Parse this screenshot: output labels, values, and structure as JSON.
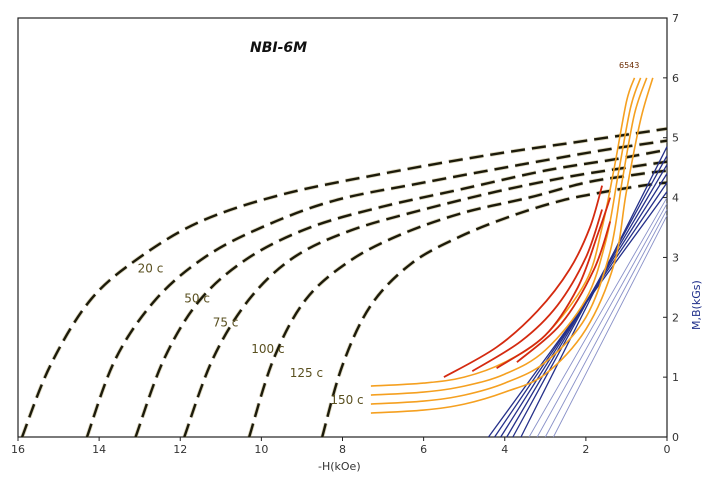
{
  "chart_data": {
    "type": "line",
    "title": "NBI-6M",
    "xlabel": "-H(kOe)",
    "ylabel": "M,B(kGs)",
    "x_reversed": true,
    "xlim": [
      16,
      0
    ],
    "ylim": [
      0,
      7
    ],
    "x_ticks": [
      "16",
      "14",
      "12",
      "10",
      "8",
      "6",
      "4",
      "2",
      "0"
    ],
    "y_ticks": [
      "0",
      "1",
      "2",
      "3",
      "4",
      "5",
      "6",
      "7"
    ],
    "grid": false,
    "colors": {
      "demag_dash": "#1c1a0a",
      "demag_tint": "#9a8a40",
      "orange": "#f5a020",
      "red": "#d42a10",
      "blue": "#25308a",
      "light_blue": "#8890c8",
      "axis": "#222222"
    },
    "annotation": "6543",
    "temperature_labels": [
      "20 c",
      "50 c",
      "75 c",
      "100 c",
      "125 c",
      "150 c"
    ],
    "intrinsic_curves": [
      {
        "name": "20 c",
        "hcj": 15.9,
        "mr": 5.15,
        "points": [
          [
            15.9,
            0
          ],
          [
            15.2,
            1.2
          ],
          [
            14.2,
            2.3
          ],
          [
            13.0,
            3.0
          ],
          [
            11.5,
            3.6
          ],
          [
            9.5,
            4.05
          ],
          [
            7.0,
            4.4
          ],
          [
            4.5,
            4.7
          ],
          [
            2.0,
            4.95
          ],
          [
            0,
            5.15
          ]
        ]
      },
      {
        "name": "50 c",
        "hcj": 14.3,
        "mr": 4.95,
        "points": [
          [
            14.3,
            0
          ],
          [
            13.6,
            1.3
          ],
          [
            12.6,
            2.3
          ],
          [
            11.4,
            3.0
          ],
          [
            10.0,
            3.5
          ],
          [
            8.2,
            3.95
          ],
          [
            6.0,
            4.25
          ],
          [
            3.6,
            4.55
          ],
          [
            1.5,
            4.8
          ],
          [
            0,
            4.95
          ]
        ]
      },
      {
        "name": "75 c",
        "hcj": 13.1,
        "mr": 4.8,
        "points": [
          [
            13.1,
            0
          ],
          [
            12.4,
            1.3
          ],
          [
            11.5,
            2.3
          ],
          [
            10.3,
            3.0
          ],
          [
            8.8,
            3.5
          ],
          [
            7.0,
            3.85
          ],
          [
            5.0,
            4.15
          ],
          [
            3.0,
            4.45
          ],
          [
            1.2,
            4.65
          ],
          [
            0,
            4.8
          ]
        ]
      },
      {
        "name": "100 c",
        "hcj": 11.9,
        "mr": 4.6,
        "points": [
          [
            11.9,
            0
          ],
          [
            11.2,
            1.3
          ],
          [
            10.3,
            2.3
          ],
          [
            9.2,
            3.0
          ],
          [
            7.8,
            3.45
          ],
          [
            6.0,
            3.8
          ],
          [
            4.2,
            4.1
          ],
          [
            2.4,
            4.35
          ],
          [
            1.0,
            4.5
          ],
          [
            0,
            4.6
          ]
        ]
      },
      {
        "name": "125 c",
        "hcj": 10.3,
        "mr": 4.45,
        "points": [
          [
            10.3,
            0
          ],
          [
            9.7,
            1.3
          ],
          [
            8.9,
            2.3
          ],
          [
            7.8,
            2.95
          ],
          [
            6.5,
            3.4
          ],
          [
            5.0,
            3.75
          ],
          [
            3.4,
            4.0
          ],
          [
            2.0,
            4.25
          ],
          [
            0.8,
            4.38
          ],
          [
            0,
            4.45
          ]
        ]
      },
      {
        "name": "150 c",
        "hcj": 8.5,
        "mr": 4.25,
        "points": [
          [
            8.5,
            0
          ],
          [
            8.0,
            1.2
          ],
          [
            7.3,
            2.2
          ],
          [
            6.3,
            2.9
          ],
          [
            5.1,
            3.35
          ],
          [
            3.8,
            3.7
          ],
          [
            2.6,
            3.95
          ],
          [
            1.5,
            4.1
          ],
          [
            0.6,
            4.2
          ],
          [
            0,
            4.25
          ]
        ]
      }
    ],
    "normal_curves_orange": [
      {
        "points": [
          [
            7.3,
            0.85
          ],
          [
            6.0,
            0.9
          ],
          [
            5.0,
            1.0
          ],
          [
            4.0,
            1.25
          ],
          [
            3.0,
            1.7
          ],
          [
            2.0,
            2.6
          ],
          [
            1.6,
            3.5
          ],
          [
            1.3,
            4.5
          ],
          [
            1.0,
            5.6
          ],
          [
            0.8,
            6.0
          ]
        ]
      },
      {
        "points": [
          [
            7.3,
            0.7
          ],
          [
            6.0,
            0.75
          ],
          [
            5.0,
            0.85
          ],
          [
            4.0,
            1.05
          ],
          [
            3.0,
            1.45
          ],
          [
            2.0,
            2.3
          ],
          [
            1.5,
            3.3
          ],
          [
            1.2,
            4.4
          ],
          [
            0.9,
            5.5
          ],
          [
            0.65,
            6.0
          ]
        ]
      },
      {
        "points": [
          [
            7.3,
            0.55
          ],
          [
            6.0,
            0.6
          ],
          [
            5.0,
            0.7
          ],
          [
            4.0,
            0.9
          ],
          [
            3.0,
            1.25
          ],
          [
            2.0,
            2.0
          ],
          [
            1.4,
            3.1
          ],
          [
            1.1,
            4.3
          ],
          [
            0.8,
            5.4
          ],
          [
            0.5,
            6.0
          ]
        ]
      },
      {
        "points": [
          [
            7.3,
            0.4
          ],
          [
            6.0,
            0.45
          ],
          [
            5.0,
            0.55
          ],
          [
            4.0,
            0.75
          ],
          [
            3.0,
            1.05
          ],
          [
            2.0,
            1.8
          ],
          [
            1.3,
            2.9
          ],
          [
            1.0,
            4.1
          ],
          [
            0.65,
            5.3
          ],
          [
            0.35,
            6.0
          ]
        ]
      }
    ],
    "normal_curves_red": [
      {
        "points": [
          [
            5.5,
            1.0
          ],
          [
            4.2,
            1.5
          ],
          [
            3.2,
            2.1
          ],
          [
            2.4,
            2.8
          ],
          [
            1.9,
            3.5
          ],
          [
            1.6,
            4.2
          ]
        ]
      },
      {
        "points": [
          [
            4.8,
            1.1
          ],
          [
            3.6,
            1.6
          ],
          [
            2.7,
            2.2
          ],
          [
            2.0,
            3.0
          ],
          [
            1.6,
            3.8
          ]
        ]
      },
      {
        "points": [
          [
            4.2,
            1.15
          ],
          [
            3.0,
            1.7
          ],
          [
            2.2,
            2.5
          ],
          [
            1.7,
            3.4
          ],
          [
            1.4,
            4.0
          ]
        ]
      },
      {
        "points": [
          [
            3.7,
            1.25
          ],
          [
            2.6,
            1.9
          ],
          [
            1.8,
            2.8
          ],
          [
            1.4,
            3.6
          ]
        ]
      }
    ],
    "recoil_lines": [
      {
        "x0": 4.4,
        "x1": 0.0,
        "y1": 4.1
      },
      {
        "x0": 4.25,
        "x1": 0.0,
        "y1": 4.25
      },
      {
        "x0": 4.1,
        "x1": 0.0,
        "y1": 4.4
      },
      {
        "x0": 3.95,
        "x1": 0.0,
        "y1": 4.55
      },
      {
        "x0": 3.8,
        "x1": 0.0,
        "y1": 4.7
      },
      {
        "x0": 3.6,
        "x1": 0.0,
        "y1": 4.85
      },
      {
        "x0": 3.4,
        "x1": 0.0,
        "y1": 4.0
      },
      {
        "x0": 3.2,
        "x1": 0.0,
        "y1": 3.9
      },
      {
        "x0": 3.0,
        "x1": 0.0,
        "y1": 3.8
      },
      {
        "x0": 2.8,
        "x1": 0.0,
        "y1": 3.7
      }
    ]
  }
}
